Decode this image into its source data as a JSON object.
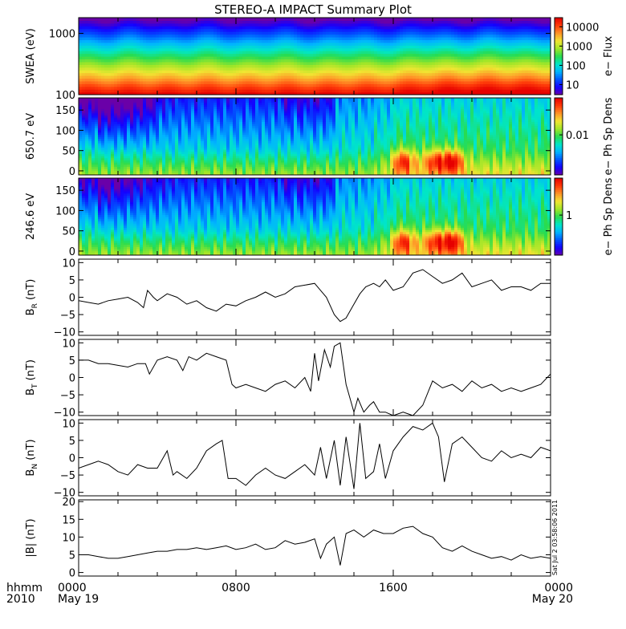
{
  "title": "STEREO-A IMPACT Summary Plot",
  "colors": {
    "background": "#ffffff",
    "axes": "#000000",
    "colormap": [
      "#6a00a8",
      "#1400ff",
      "#0055ff",
      "#00b4ff",
      "#00e6c8",
      "#28dc50",
      "#a0e628",
      "#f0e632",
      "#ff9628",
      "#ff3c0a",
      "#e60000"
    ]
  },
  "time_axis": {
    "row_label_1": "hhmm",
    "row_label_2": "2010",
    "ticks": [
      {
        "t": 0,
        "time": "0000",
        "date": "May 19"
      },
      {
        "t": 8,
        "time": "0800",
        "date": ""
      },
      {
        "t": 16,
        "time": "1600",
        "date": ""
      },
      {
        "t": 24,
        "time": "0000",
        "date": "May 20"
      }
    ],
    "range_hours": [
      0,
      24
    ]
  },
  "timestamp_stamp": "Sat Jul  2 03:58:06 2011",
  "chart_data": [
    {
      "type": "heatmap",
      "ylabel": "SWEA (eV)",
      "y_scale": "log",
      "ylim": [
        100,
        1800
      ],
      "yticks": [
        {
          "v": 100,
          "label": "100"
        },
        {
          "v": 1000,
          "label": "1000"
        }
      ],
      "colorbar": {
        "label": "e− Flux",
        "scale": "log",
        "range": [
          3,
          30000
        ],
        "ticks": [
          {
            "v": 10,
            "label": "10"
          },
          {
            "v": 100,
            "label": "100"
          },
          {
            "v": 1000,
            "label": "1000"
          },
          {
            "v": 10000,
            "label": "10000"
          }
        ]
      },
      "description": "flux decreasing with energy; higher flux after 16:00"
    },
    {
      "type": "heatmap",
      "ylabel": "650.7 eV",
      "ylim": [
        -10,
        180
      ],
      "yticks": [
        {
          "v": 0,
          "label": "0"
        },
        {
          "v": 50,
          "label": "50"
        },
        {
          "v": 100,
          "label": "100"
        },
        {
          "v": 150,
          "label": "150"
        }
      ],
      "colorbar": {
        "label": "e− Ph Sp Dens",
        "scale": "log",
        "ticks": [
          {
            "v": 0.01,
            "label": "0.01"
          }
        ]
      }
    },
    {
      "type": "heatmap",
      "ylabel": "246.6 eV",
      "ylim": [
        -10,
        180
      ],
      "yticks": [
        {
          "v": 0,
          "label": "0"
        },
        {
          "v": 50,
          "label": "50"
        },
        {
          "v": 100,
          "label": "100"
        },
        {
          "v": 150,
          "label": "150"
        }
      ],
      "colorbar": {
        "label": "e− Ph Sp Dens",
        "scale": "log",
        "ticks": [
          {
            "v": 1,
            "label": "1"
          }
        ]
      }
    },
    {
      "type": "line",
      "ylabel_main": "B",
      "ylabel_sub": "R",
      "ylabel_unit": "(nT)",
      "ylim": [
        -11,
        11
      ],
      "yticks": [
        {
          "v": -10,
          "label": "−10"
        },
        {
          "v": -5,
          "label": "−5"
        },
        {
          "v": 0,
          "label": "0"
        },
        {
          "v": 5,
          "label": "5"
        },
        {
          "v": 10,
          "label": "10"
        }
      ],
      "x": [
        0,
        0.5,
        1,
        1.5,
        2,
        2.5,
        3,
        3.3,
        3.5,
        3.8,
        4,
        4.5,
        5,
        5.5,
        6,
        6.5,
        7,
        7.5,
        8,
        8.5,
        9,
        9.5,
        10,
        10.5,
        11,
        11.5,
        12,
        12.3,
        12.6,
        13,
        13.3,
        13.6,
        14,
        14.3,
        14.6,
        15,
        15.3,
        15.6,
        16,
        16.5,
        17,
        17.5,
        18,
        18.5,
        19,
        19.5,
        20,
        20.5,
        21,
        21.5,
        22,
        22.5,
        23,
        23.5,
        24
      ],
      "y": [
        -1,
        -1.5,
        -2,
        -1,
        -0.5,
        0,
        -1.5,
        -3,
        2,
        0,
        -1,
        1,
        0,
        -2,
        -1,
        -3,
        -4,
        -2,
        -2.5,
        -1,
        0,
        1.5,
        0,
        1,
        3,
        3.5,
        4,
        2,
        0,
        -5,
        -7,
        -6,
        -2,
        1,
        3,
        4,
        3,
        5,
        2,
        3,
        7,
        8,
        6,
        4,
        5,
        7,
        3,
        4,
        5,
        2,
        3,
        3,
        2,
        4,
        4
      ]
    },
    {
      "type": "line",
      "ylabel_main": "B",
      "ylabel_sub": "T",
      "ylabel_unit": "(nT)",
      "ylim": [
        -11,
        11
      ],
      "yticks": [
        {
          "v": -10,
          "label": "−10"
        },
        {
          "v": -5,
          "label": "−5"
        },
        {
          "v": 0,
          "label": "0"
        },
        {
          "v": 5,
          "label": "5"
        },
        {
          "v": 10,
          "label": "10"
        }
      ],
      "x": [
        0,
        0.5,
        1,
        1.5,
        2,
        2.5,
        3,
        3.4,
        3.6,
        4,
        4.5,
        5,
        5.3,
        5.6,
        6,
        6.5,
        7,
        7.5,
        7.8,
        8,
        8.5,
        9,
        9.5,
        10,
        10.5,
        11,
        11.5,
        11.8,
        12,
        12.2,
        12.5,
        12.8,
        13,
        13.3,
        13.6,
        14,
        14.2,
        14.5,
        14.8,
        15,
        15.3,
        15.6,
        16,
        16.5,
        17,
        17.5,
        18,
        18.5,
        19,
        19.5,
        20,
        20.5,
        21,
        21.5,
        22,
        22.5,
        23,
        23.5,
        24
      ],
      "y": [
        5,
        5,
        4,
        4,
        3.5,
        3,
        4,
        4,
        1,
        5,
        6,
        5,
        2,
        6,
        5,
        7,
        6,
        5,
        -2,
        -3,
        -2,
        -3,
        -4,
        -2,
        -1,
        -3,
        0,
        -4,
        7,
        -1,
        8,
        3,
        9,
        10,
        -2,
        -10,
        -6,
        -10,
        -8,
        -7,
        -10,
        -10,
        -11,
        -10,
        -11,
        -8,
        -1,
        -3,
        -2,
        -4,
        -1,
        -3,
        -2,
        -4,
        -3,
        -4,
        -3,
        -2,
        1
      ]
    },
    {
      "type": "line",
      "ylabel_main": "B",
      "ylabel_sub": "N",
      "ylabel_unit": "(nT)",
      "ylim": [
        -11,
        11
      ],
      "yticks": [
        {
          "v": -10,
          "label": "−10"
        },
        {
          "v": -5,
          "label": "−5"
        },
        {
          "v": 0,
          "label": "0"
        },
        {
          "v": 5,
          "label": "5"
        },
        {
          "v": 10,
          "label": "10"
        }
      ],
      "x": [
        0,
        0.5,
        1,
        1.5,
        2,
        2.5,
        3,
        3.5,
        4,
        4.5,
        4.8,
        5,
        5.5,
        6,
        6.5,
        7,
        7.3,
        7.6,
        8,
        8.5,
        9,
        9.5,
        10,
        10.5,
        11,
        11.5,
        12,
        12.3,
        12.6,
        13,
        13.3,
        13.6,
        14,
        14.3,
        14.6,
        15,
        15.3,
        15.6,
        16,
        16.5,
        17,
        17.5,
        18,
        18.3,
        18.6,
        19,
        19.5,
        20,
        20.5,
        21,
        21.5,
        22,
        22.5,
        23,
        23.5,
        24
      ],
      "y": [
        -3,
        -2,
        -1,
        -2,
        -4,
        -5,
        -2,
        -3,
        -3,
        2,
        -5,
        -4,
        -6,
        -3,
        2,
        4,
        5,
        -6,
        -6,
        -8,
        -5,
        -3,
        -5,
        -6,
        -4,
        -2,
        -5,
        3,
        -6,
        5,
        -8,
        6,
        -9,
        10,
        -6,
        -4,
        4,
        -6,
        2,
        6,
        9,
        8,
        10,
        6,
        -7,
        4,
        6,
        3,
        0,
        -1,
        2,
        0,
        1,
        0,
        3,
        2
      ]
    },
    {
      "type": "line",
      "ylabel_main": "|B|",
      "ylabel_unit": "(nT)",
      "ylim": [
        -1,
        20.5
      ],
      "yticks": [
        {
          "v": 0,
          "label": "0"
        },
        {
          "v": 5,
          "label": "5"
        },
        {
          "v": 10,
          "label": "10"
        },
        {
          "v": 15,
          "label": "15"
        },
        {
          "v": 20,
          "label": "20"
        }
      ],
      "x": [
        0,
        0.5,
        1,
        1.5,
        2,
        2.5,
        3,
        3.5,
        4,
        4.5,
        5,
        5.5,
        6,
        6.5,
        7,
        7.5,
        8,
        8.5,
        9,
        9.5,
        10,
        10.5,
        11,
        11.5,
        12,
        12.3,
        12.6,
        13,
        13.3,
        13.6,
        14,
        14.5,
        15,
        15.5,
        16,
        16.5,
        17,
        17.5,
        18,
        18.5,
        19,
        19.5,
        20,
        20.5,
        21,
        21.5,
        22,
        22.5,
        23,
        23.5,
        24
      ],
      "y": [
        5,
        5,
        4.5,
        4,
        4,
        4.5,
        5,
        5.5,
        6,
        6,
        6.5,
        6.5,
        7,
        6.5,
        7,
        7.5,
        6.5,
        7,
        8,
        6.5,
        7,
        9,
        8,
        8.5,
        9.5,
        4,
        8,
        10,
        2,
        11,
        12,
        10,
        12,
        11,
        11,
        12.5,
        13,
        11,
        10,
        7,
        6,
        7.5,
        6,
        5,
        4,
        4.5,
        3.5,
        5,
        4,
        4.5,
        4
      ]
    }
  ]
}
